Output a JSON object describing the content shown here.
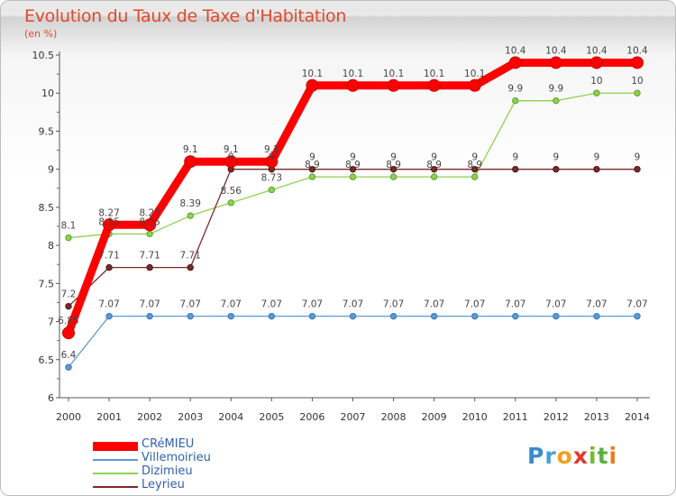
{
  "title": "Evolution du Taux de Taxe d'Habitation",
  "unit": "(en %)",
  "logo": "Proxiti",
  "chart_data": {
    "type": "line",
    "title": "Evolution du Taux de Taxe d'Habitation",
    "ylabel": "(en %)",
    "xlabel": "",
    "x": [
      "2000",
      "2001",
      "2002",
      "2003",
      "2004",
      "2005",
      "2006",
      "2007",
      "2008",
      "2009",
      "2010",
      "2011",
      "2012",
      "2013",
      "2014"
    ],
    "ylim": [
      6,
      10.5
    ],
    "yticks": [
      "6",
      "6.5",
      "7",
      "7.5",
      "8",
      "8.5",
      "9",
      "9.5",
      "10",
      "10.5"
    ],
    "grid": false,
    "legend_position": "bottom-left",
    "series": [
      {
        "name": "CRéMIEU",
        "color": "#ff0000",
        "values": [
          6.85,
          8.27,
          8.27,
          9.1,
          9.1,
          9.1,
          10.1,
          10.1,
          10.1,
          10.1,
          10.1,
          10.4,
          10.4,
          10.4,
          10.4
        ],
        "labels": [
          "6.85",
          "8.27",
          "8.27",
          "9.1",
          "9.1",
          "9.1",
          "10.1",
          "10.1",
          "10.1",
          "10.1",
          "10.1",
          "10.4",
          "10.4",
          "10.4",
          "10.4"
        ]
      },
      {
        "name": "Villemoirieu",
        "color": "#5b9bd5",
        "values": [
          6.4,
          7.07,
          7.07,
          7.07,
          7.07,
          7.07,
          7.07,
          7.07,
          7.07,
          7.07,
          7.07,
          7.07,
          7.07,
          7.07,
          7.07
        ],
        "labels": [
          "6.4",
          "7.07",
          "7.07",
          "7.07",
          "7.07",
          "7.07",
          "7.07",
          "7.07",
          "7.07",
          "7.07",
          "7.07",
          "7.07",
          "7.07",
          "7.07",
          "7.07"
        ]
      },
      {
        "name": "Dizimieu",
        "color": "#8fd14f",
        "values": [
          8.1,
          8.15,
          8.15,
          8.39,
          8.56,
          8.73,
          8.9,
          8.9,
          8.9,
          8.9,
          8.9,
          9.9,
          9.9,
          10,
          10
        ],
        "labels": [
          "8.1",
          "8.15",
          "8.15",
          "8.39",
          "8.56",
          "8.73",
          "8.9",
          "8.9",
          "8.9",
          "8.9",
          "8.9",
          "9.9",
          "9.9",
          "10",
          "10"
        ]
      },
      {
        "name": "Leyrieu",
        "color": "#7b2a2a",
        "values": [
          7.2,
          7.71,
          7.71,
          7.71,
          9,
          9,
          9,
          9,
          9,
          9,
          9,
          9,
          9,
          9,
          9
        ],
        "labels": [
          "7.2",
          "7.71",
          "7.71",
          "7.71",
          "9",
          "9",
          "9",
          "9",
          "9",
          "9",
          "9",
          "9",
          "9",
          "9",
          "9"
        ]
      }
    ]
  }
}
